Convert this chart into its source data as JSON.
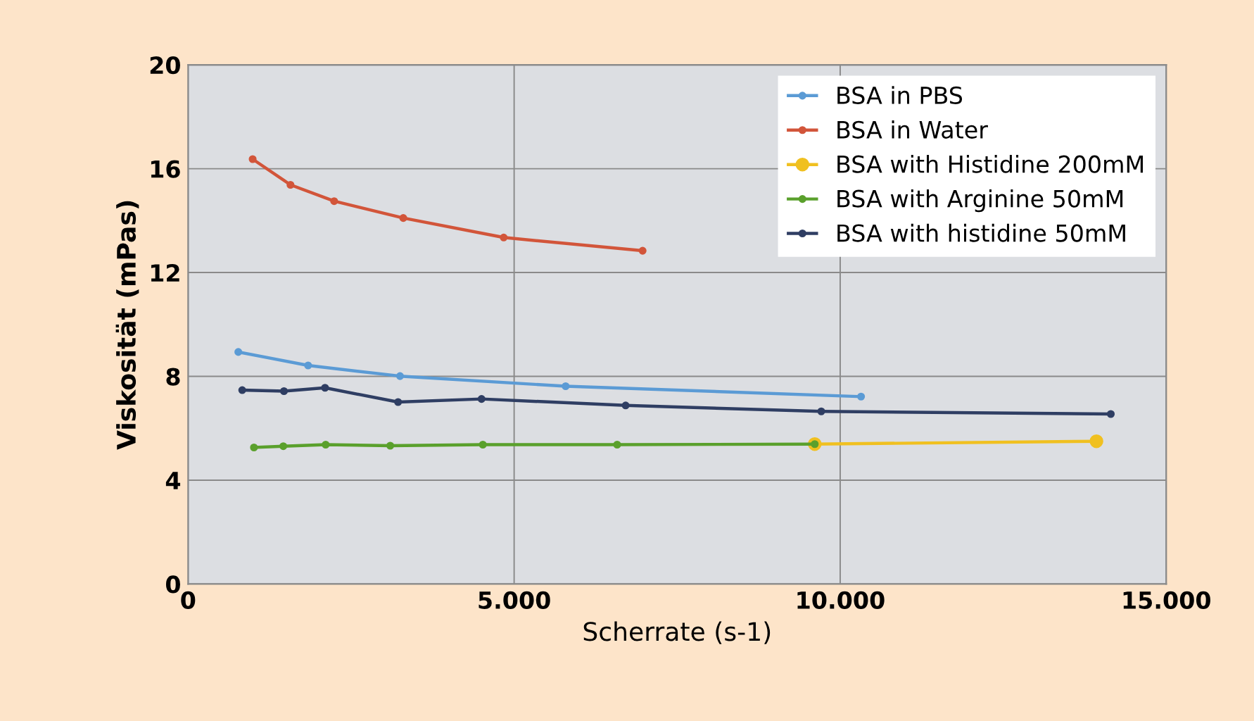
{
  "chart_data": {
    "type": "line",
    "xlabel": "Scherrate (s-1)",
    "ylabel": "Viskosität (mPas)",
    "xlim": [
      0,
      15000
    ],
    "xticks": [
      0,
      {
        "value": 5000,
        "label": "5.000"
      },
      {
        "value": 10000,
        "label": "10.000"
      },
      {
        "value": 15000,
        "label": "15.000"
      }
    ],
    "ylim": [
      0,
      20
    ],
    "yticks": [
      0,
      4,
      8,
      12,
      16,
      20
    ],
    "grid": true,
    "legend": "top right",
    "marker": "circle",
    "line_style": "solid",
    "series": [
      {
        "name": "BSA in PBS",
        "color": "#5b9bd5",
        "x": [
          770,
          1840,
          3250,
          5790,
          10320
        ],
        "values": [
          8.94,
          8.42,
          8.01,
          7.62,
          7.22
        ]
      },
      {
        "name": "BSA in Water",
        "color": "#d2553a",
        "x": [
          990,
          1570,
          2240,
          3300,
          4840,
          6970
        ],
        "values": [
          16.37,
          15.38,
          14.75,
          14.1,
          13.35,
          12.84
        ]
      },
      {
        "name": "BSA with Histidine 200mM",
        "color": "#f0c020",
        "x": [
          9610,
          13930
        ],
        "values": [
          5.39,
          5.5
        ]
      },
      {
        "name": "BSA with Arginine 50mM",
        "color": "#5aa02c",
        "x": [
          1010,
          1460,
          2110,
          3100,
          4520,
          6580,
          9610
        ],
        "values": [
          5.26,
          5.31,
          5.37,
          5.33,
          5.37,
          5.37,
          5.39
        ]
      },
      {
        "name": "BSA with histidine 50mM",
        "color": "#2f3e63",
        "x": [
          830,
          1470,
          2100,
          3220,
          4500,
          6710,
          9710,
          14150
        ],
        "values": [
          7.47,
          7.43,
          7.56,
          7.01,
          7.13,
          6.88,
          6.65,
          6.55
        ]
      }
    ]
  }
}
